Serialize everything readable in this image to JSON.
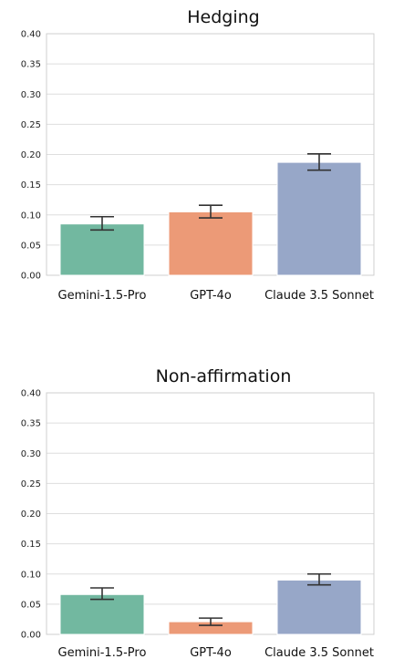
{
  "chart_data": [
    {
      "type": "bar",
      "title": "Hedging",
      "categories": [
        "Gemini-1.5-Pro",
        "GPT-4o",
        "Claude 3.5 Sonnet"
      ],
      "values": [
        0.085,
        0.105,
        0.187
      ],
      "error": [
        [
          0.075,
          0.097
        ],
        [
          0.095,
          0.116
        ],
        [
          0.174,
          0.201
        ]
      ],
      "colors": [
        "#72b8a0",
        "#ec9a77",
        "#97a7c8"
      ],
      "ylim": [
        0,
        0.4
      ],
      "yticks": [
        "0.00",
        "0.05",
        "0.10",
        "0.15",
        "0.20",
        "0.25",
        "0.30",
        "0.35",
        "0.40"
      ],
      "grid": true
    },
    {
      "type": "bar",
      "title": "Non-affirmation",
      "categories": [
        "Gemini-1.5-Pro",
        "GPT-4o",
        "Claude 3.5 Sonnet"
      ],
      "values": [
        0.066,
        0.021,
        0.09
      ],
      "error": [
        [
          0.058,
          0.077
        ],
        [
          0.015,
          0.027
        ],
        [
          0.082,
          0.1
        ]
      ],
      "colors": [
        "#72b8a0",
        "#ec9a77",
        "#97a7c8"
      ],
      "ylim": [
        0,
        0.4
      ],
      "yticks": [
        "0.00",
        "0.05",
        "0.10",
        "0.15",
        "0.20",
        "0.25",
        "0.30",
        "0.35",
        "0.40"
      ],
      "grid": true
    }
  ]
}
